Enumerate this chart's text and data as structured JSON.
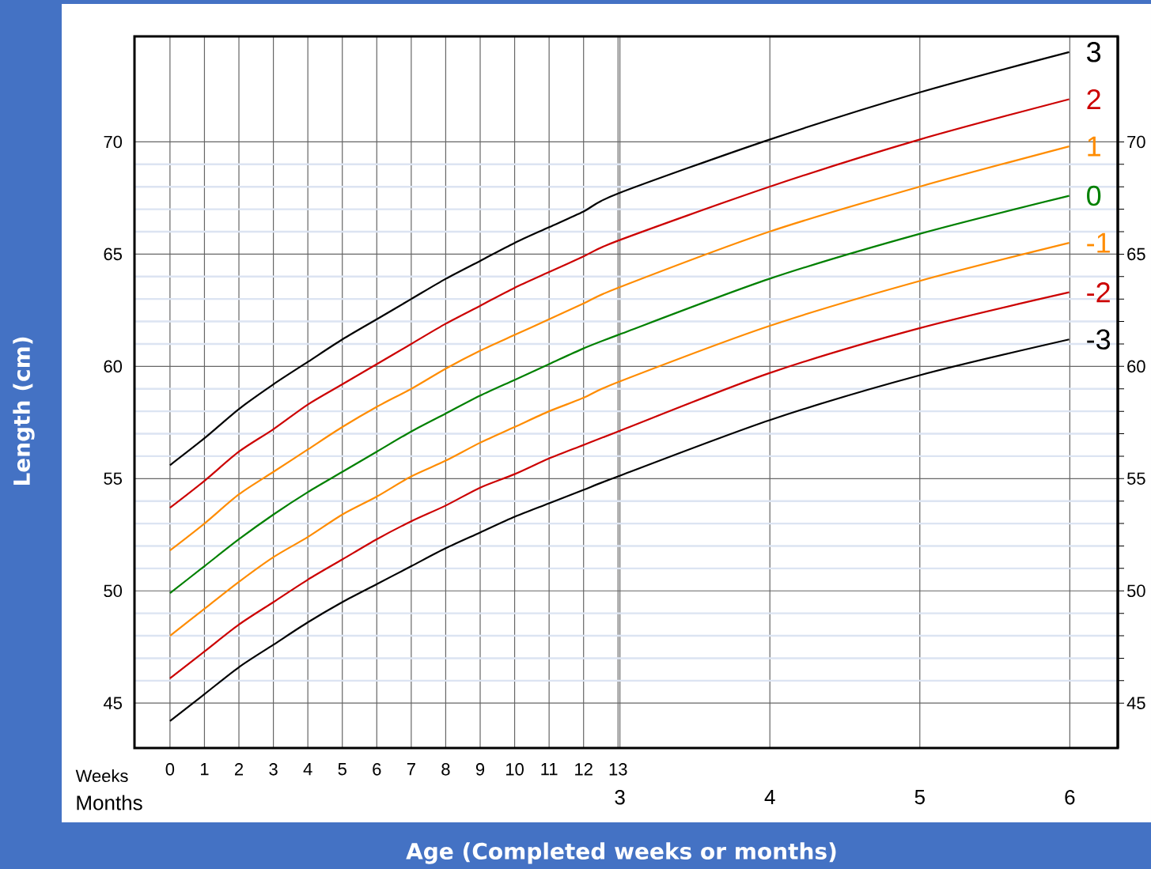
{
  "chart_data": {
    "type": "line",
    "xlabel": "Age (Completed weeks or months)",
    "ylabel": "Length (cm)",
    "annotations": [
      "Weeks",
      "Months"
    ],
    "x": [
      0,
      1,
      2,
      3,
      4,
      5,
      6,
      7,
      8,
      9,
      10,
      11,
      12,
      13,
      17.39,
      21.74,
      26.09
    ],
    "series": [
      {
        "name": "3",
        "color": "#000000",
        "values": [
          55.6,
          56.8,
          58.1,
          59.2,
          60.2,
          61.2,
          62.1,
          63.0,
          63.9,
          64.7,
          65.5,
          66.2,
          66.9,
          67.7,
          70.1,
          72.2,
          74.0
        ]
      },
      {
        "name": "2",
        "color": "#cc0000",
        "values": [
          53.7,
          54.9,
          56.2,
          57.2,
          58.3,
          59.2,
          60.1,
          61.0,
          61.9,
          62.7,
          63.5,
          64.2,
          64.9,
          65.6,
          68.0,
          70.1,
          71.9
        ]
      },
      {
        "name": "1",
        "color": "#ff8c00",
        "values": [
          51.8,
          53.0,
          54.3,
          55.3,
          56.3,
          57.3,
          58.2,
          59.0,
          59.9,
          60.7,
          61.4,
          62.1,
          62.8,
          63.5,
          66.0,
          68.0,
          69.8
        ]
      },
      {
        "name": "0",
        "color": "#008000",
        "values": [
          49.9,
          51.1,
          52.3,
          53.4,
          54.4,
          55.3,
          56.2,
          57.1,
          57.9,
          58.7,
          59.4,
          60.1,
          60.8,
          61.4,
          63.9,
          65.9,
          67.6
        ]
      },
      {
        "name": "-1",
        "color": "#ff8c00",
        "values": [
          48.0,
          49.2,
          50.4,
          51.5,
          52.4,
          53.4,
          54.2,
          55.1,
          55.8,
          56.6,
          57.3,
          58.0,
          58.6,
          59.3,
          61.8,
          63.8,
          65.5
        ]
      },
      {
        "name": "-2",
        "color": "#cc0000",
        "values": [
          46.1,
          47.3,
          48.5,
          49.5,
          50.5,
          51.4,
          52.3,
          53.1,
          53.8,
          54.6,
          55.2,
          55.9,
          56.5,
          57.1,
          59.7,
          61.7,
          63.3
        ]
      },
      {
        "name": "-3",
        "color": "#000000",
        "values": [
          44.2,
          45.4,
          46.6,
          47.6,
          48.6,
          49.5,
          50.3,
          51.1,
          51.9,
          52.6,
          53.3,
          53.9,
          54.5,
          55.1,
          57.6,
          59.6,
          61.2
        ]
      }
    ],
    "xlim": [
      -1.03,
      27.5
    ],
    "ylim": [
      43,
      74.7
    ],
    "xticks": [
      0,
      1,
      2,
      3,
      4,
      5,
      6,
      7,
      8,
      9,
      10,
      11,
      12,
      13
    ],
    "x2lim": [
      -0.237,
      6.32
    ],
    "x2ticks": [
      3,
      4,
      5,
      6
    ],
    "yticks": [
      45,
      50,
      55,
      60,
      65,
      70
    ],
    "y2lim": [
      43,
      74.7
    ],
    "y2ticks": [
      45,
      50,
      55,
      60,
      65,
      70
    ],
    "grid": true,
    "marker": "none",
    "line_style": "solid"
  }
}
